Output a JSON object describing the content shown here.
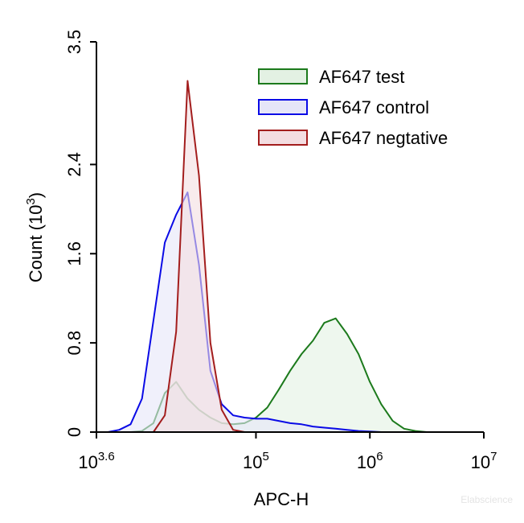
{
  "chart_data": {
    "type": "area",
    "x_label": "APC-H",
    "y_label": {
      "text": "Count  (10",
      "sup": "3",
      "end": ")"
    },
    "watermark": "Elabscience",
    "x": [
      3981.07,
      5011.87,
      6309.57,
      7943.28,
      10000,
      12589.3,
      15848.9,
      19952.6,
      25118.9,
      31622.8,
      39810.7,
      50118.7,
      63095.7,
      79432.8,
      100000,
      125893,
      158489,
      199526,
      251189,
      316228,
      398107,
      501187,
      630957,
      794328,
      1000000,
      1258925,
      1584893,
      1995262,
      2511886,
      3162278,
      3981072,
      5011872,
      6309573,
      7943282,
      10000000
    ],
    "series": [
      {
        "name": "AF647 test",
        "color": "#1c7a1c",
        "fill": "#e3f1e3",
        "values": [
          0,
          0,
          0,
          0,
          0.01,
          0.08,
          0.35,
          0.45,
          0.3,
          0.2,
          0.13,
          0.08,
          0.07,
          0.08,
          0.13,
          0.22,
          0.38,
          0.55,
          0.7,
          0.82,
          0.98,
          1.02,
          0.88,
          0.7,
          0.45,
          0.25,
          0.1,
          0.03,
          0.01,
          0,
          0,
          0,
          0,
          0,
          0
        ]
      },
      {
        "name": "AF647 control",
        "color": "#0a0ae6",
        "fill": "#e6e6f8",
        "values": [
          0,
          0,
          0.02,
          0.07,
          0.3,
          1.0,
          1.7,
          1.95,
          2.15,
          1.5,
          0.55,
          0.25,
          0.15,
          0.13,
          0.12,
          0.12,
          0.1,
          0.08,
          0.07,
          0.05,
          0.04,
          0.03,
          0.02,
          0.01,
          0.005,
          0,
          0,
          0,
          0,
          0,
          0,
          0,
          0,
          0,
          0
        ]
      },
      {
        "name": "AF647 negtative",
        "color": "#a31d1d",
        "fill": "#f3dde1",
        "values": [
          0,
          0,
          0,
          0,
          0,
          0,
          0.15,
          0.9,
          3.15,
          2.3,
          0.8,
          0.2,
          0.02,
          0,
          0,
          0,
          0,
          0,
          0,
          0,
          0,
          0,
          0,
          0,
          0,
          0,
          0,
          0,
          0,
          0,
          0,
          0,
          0,
          0,
          0
        ]
      }
    ],
    "xlog": true,
    "xlim": [
      3981.07,
      10000000
    ],
    "xticks": [
      {
        "value": 3981.07,
        "label": "10",
        "exp": "3.6"
      },
      {
        "value": 100000,
        "label": "10",
        "exp": "5"
      },
      {
        "value": 1000000,
        "label": "10",
        "exp": "6"
      },
      {
        "value": 10000000,
        "label": "10",
        "exp": "7"
      }
    ],
    "ylim": [
      0,
      3.5
    ],
    "yticks": [
      0,
      0.8,
      1.6,
      2.4,
      3.5
    ],
    "legend": "upper right"
  }
}
